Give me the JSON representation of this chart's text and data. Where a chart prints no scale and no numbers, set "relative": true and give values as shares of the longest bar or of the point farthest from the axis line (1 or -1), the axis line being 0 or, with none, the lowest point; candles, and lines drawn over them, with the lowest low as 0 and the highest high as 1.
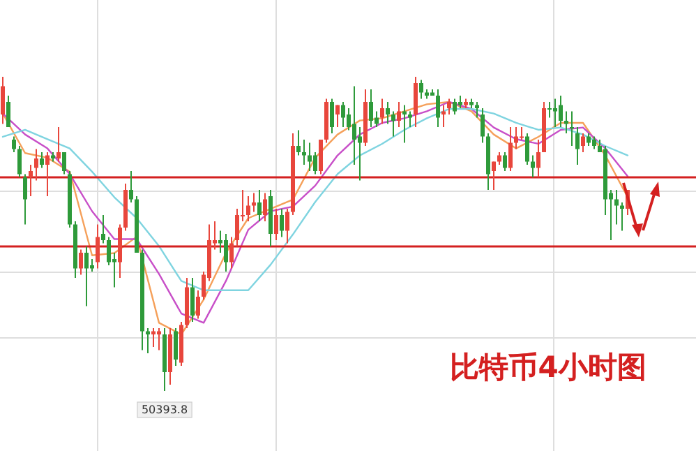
{
  "chart_data": [
    {
      "type": "candlestick",
      "title": "比特币4小时图",
      "relative": true,
      "grid": true,
      "categories": [
        null,
        null,
        null,
        null,
        null,
        null,
        null,
        null,
        null,
        null,
        null,
        null,
        null,
        null,
        null,
        null,
        null,
        null,
        null,
        null,
        null,
        null,
        null,
        null,
        null,
        null,
        null,
        null,
        null,
        null,
        null,
        null,
        null,
        null,
        null,
        null,
        null,
        null,
        null,
        null,
        null,
        null,
        null,
        null,
        null,
        null,
        null,
        null,
        null,
        null,
        null,
        null,
        null,
        null,
        null,
        null,
        null,
        null,
        null,
        null,
        null,
        null,
        null,
        null,
        null,
        null,
        null,
        null,
        null,
        null,
        null,
        null,
        null,
        null,
        null,
        null,
        null,
        null,
        null,
        null,
        null,
        null,
        null,
        null,
        null,
        null,
        null,
        null,
        null,
        null,
        null,
        null,
        null,
        null,
        null,
        null,
        null,
        null,
        null,
        null,
        null,
        null,
        null,
        null,
        null,
        null,
        null,
        null,
        null,
        null,
        null,
        null,
        null
      ],
      "ohlc": [
        [
          0.88,
          1.0,
          0.85,
          0.97
        ],
        [
          0.92,
          0.94,
          0.84,
          0.84
        ],
        [
          0.8,
          0.81,
          0.76,
          0.77
        ],
        [
          0.77,
          0.78,
          0.68,
          0.69
        ],
        [
          0.68,
          0.69,
          0.53,
          0.61
        ],
        [
          0.68,
          0.72,
          0.62,
          0.7
        ],
        [
          0.71,
          0.77,
          0.67,
          0.74
        ],
        [
          0.74,
          0.76,
          0.71,
          0.72
        ],
        [
          0.72,
          0.76,
          0.62,
          0.75
        ],
        [
          0.75,
          0.76,
          0.73,
          0.74
        ],
        [
          0.74,
          0.84,
          0.73,
          0.76
        ],
        [
          0.76,
          0.76,
          0.69,
          0.7
        ],
        [
          0.69,
          0.7,
          0.52,
          0.53
        ],
        [
          0.53,
          0.54,
          0.36,
          0.39
        ],
        [
          0.39,
          0.45,
          0.37,
          0.44
        ],
        [
          0.44,
          0.46,
          0.27,
          0.39
        ],
        [
          0.4,
          0.42,
          0.38,
          0.39
        ],
        [
          0.41,
          0.53,
          0.39,
          0.49
        ],
        [
          0.5,
          0.56,
          0.47,
          0.48
        ],
        [
          0.48,
          0.49,
          0.4,
          0.41
        ],
        [
          0.42,
          0.44,
          0.33,
          0.41
        ],
        [
          0.41,
          0.53,
          0.36,
          0.52
        ],
        [
          0.52,
          0.66,
          0.51,
          0.64
        ],
        [
          0.64,
          0.7,
          0.6,
          0.61
        ],
        [
          0.61,
          0.62,
          0.44,
          0.44
        ],
        [
          0.44,
          0.45,
          0.13,
          0.19
        ],
        [
          0.19,
          0.2,
          0.12,
          0.18
        ],
        [
          0.18,
          0.2,
          0.14,
          0.19
        ],
        [
          0.18,
          0.2,
          0.13,
          0.19
        ],
        [
          0.18,
          0.2,
          0,
          0.06
        ],
        [
          0.06,
          0.2,
          0.02,
          0.18
        ],
        [
          0.19,
          0.2,
          0.08,
          0.1
        ],
        [
          0.09,
          0.22,
          0.08,
          0.21
        ],
        [
          0.21,
          0.36,
          0.2,
          0.33
        ],
        [
          0.33,
          0.36,
          0.22,
          0.24
        ],
        [
          0.24,
          0.32,
          0.23,
          0.3
        ],
        [
          0.3,
          0.38,
          0.29,
          0.37
        ],
        [
          0.36,
          0.53,
          0.35,
          0.48
        ],
        [
          0.47,
          0.54,
          0.45,
          0.48
        ],
        [
          0.48,
          0.51,
          0.44,
          0.47
        ],
        [
          0.48,
          0.5,
          0.38,
          0.41
        ],
        [
          0.41,
          0.49,
          0.39,
          0.47
        ],
        [
          0.48,
          0.58,
          0.46,
          0.56
        ],
        [
          0.56,
          0.64,
          0.54,
          0.56
        ],
        [
          0.56,
          0.62,
          0.54,
          0.59
        ],
        [
          0.59,
          0.63,
          0.57,
          0.6
        ],
        [
          0.6,
          0.64,
          0.54,
          0.56
        ],
        [
          0.56,
          0.63,
          0.54,
          0.61
        ],
        [
          0.62,
          0.64,
          0.46,
          0.5
        ],
        [
          0.5,
          0.58,
          0.48,
          0.56
        ],
        [
          0.56,
          0.58,
          0.49,
          0.51
        ],
        [
          0.51,
          0.58,
          0.47,
          0.57
        ],
        [
          0.57,
          0.82,
          0.56,
          0.78
        ],
        [
          0.78,
          0.83,
          0.75,
          0.76
        ],
        [
          0.76,
          0.8,
          0.72,
          0.75
        ],
        [
          0.75,
          0.79,
          0.7,
          0.73
        ],
        [
          0.75,
          0.76,
          0.69,
          0.7
        ],
        [
          0.7,
          0.8,
          0.69,
          0.8
        ],
        [
          0.8,
          0.93,
          0.79,
          0.92
        ],
        [
          0.92,
          0.93,
          0.82,
          0.84
        ],
        [
          0.88,
          0.91,
          0.84,
          0.91
        ],
        [
          0.91,
          0.92,
          0.84,
          0.87
        ],
        [
          0.88,
          0.9,
          0.83,
          0.84
        ],
        [
          0.85,
          0.97,
          0.72,
          0.8
        ],
        [
          0.81,
          0.84,
          0.67,
          0.79
        ],
        [
          0.79,
          0.96,
          0.78,
          0.92
        ],
        [
          0.92,
          0.96,
          0.84,
          0.86
        ],
        [
          0.87,
          0.89,
          0.84,
          0.85
        ],
        [
          0.87,
          0.93,
          0.85,
          0.9
        ],
        [
          0.9,
          0.92,
          0.85,
          0.88
        ],
        [
          0.88,
          0.89,
          0.81,
          0.86
        ],
        [
          0.86,
          0.92,
          0.84,
          0.89
        ],
        [
          0.89,
          0.91,
          0.79,
          0.88
        ],
        [
          0.88,
          0.89,
          0.84,
          0.87
        ],
        [
          0.88,
          1.0,
          0.84,
          0.98
        ],
        [
          0.98,
          0.99,
          0.93,
          0.95
        ],
        [
          0.95,
          0.96,
          0.93,
          0.94
        ],
        [
          0.95,
          0.96,
          0.94,
          0.94
        ],
        [
          0.94,
          0.96,
          0.84,
          0.87
        ],
        [
          0.88,
          0.91,
          0.84,
          0.89
        ],
        [
          0.9,
          0.93,
          0.88,
          0.92
        ],
        [
          0.92,
          0.93,
          0.88,
          0.89
        ],
        [
          0.92,
          0.94,
          0.9,
          0.91
        ],
        [
          0.91,
          0.93,
          0.9,
          0.92
        ],
        [
          0.92,
          0.93,
          0.9,
          0.91
        ],
        [
          0.91,
          0.92,
          0.87,
          0.9
        ],
        [
          0.88,
          0.9,
          0.79,
          0.81
        ],
        [
          0.81,
          0.82,
          0.64,
          0.69
        ],
        [
          0.7,
          0.73,
          0.64,
          0.73
        ],
        [
          0.73,
          0.76,
          0.72,
          0.75
        ],
        [
          0.75,
          0.76,
          0.7,
          0.71
        ],
        [
          0.71,
          0.84,
          0.7,
          0.79
        ],
        [
          0.79,
          0.84,
          0.77,
          0.81
        ],
        [
          0.81,
          0.84,
          0.8,
          0.81
        ],
        [
          0.81,
          0.82,
          0.72,
          0.73
        ],
        [
          0.73,
          0.75,
          0.68,
          0.71
        ],
        [
          0.71,
          0.8,
          0.68,
          0.76
        ],
        [
          0.76,
          0.92,
          0.76,
          0.9
        ],
        [
          0.9,
          0.92,
          0.87,
          0.9
        ],
        [
          0.9,
          0.93,
          0.84,
          0.89
        ],
        [
          0.91,
          0.94,
          0.84,
          0.86
        ],
        [
          0.86,
          0.89,
          0.82,
          0.85
        ],
        [
          0.84,
          0.89,
          0.78,
          0.84
        ],
        [
          0.82,
          0.84,
          0.72,
          0.77
        ],
        [
          0.78,
          0.82,
          0.76,
          0.81
        ],
        [
          0.81,
          0.82,
          0.78,
          0.79
        ],
        [
          0.8,
          0.81,
          0.77,
          0.78
        ],
        [
          0.78,
          0.8,
          0.76,
          0.76
        ],
        [
          0.77,
          0.78,
          0.56,
          0.61
        ],
        [
          0.63,
          0.64,
          0.48,
          0.61
        ],
        [
          0.61,
          0.64,
          0.53,
          0.59
        ],
        [
          0.59,
          0.6,
          0.51,
          0.58
        ],
        [
          0.58,
          0.64,
          0.56,
          0.64
        ]
      ],
      "colors": [
        "#e8463c",
        "#2e9a3a",
        "#2e9a3a",
        "#2e9a3a",
        "#2e9a3a",
        "#e8463c",
        "#e8463c",
        "#2e9a3a",
        "#e8463c",
        "#2e9a3a",
        "#e8463c",
        "#2e9a3a",
        "#2e9a3a",
        "#2e9a3a",
        "#e8463c",
        "#2e9a3a",
        "#2e9a3a",
        "#e8463c",
        "#2e9a3a",
        "#2e9a3a",
        "#2e9a3a",
        "#e8463c",
        "#e8463c",
        "#2e9a3a",
        "#2e9a3a",
        "#2e9a3a",
        "#2e9a3a",
        "#e8463c",
        "#e8463c",
        "#2e9a3a",
        "#e8463c",
        "#2e9a3a",
        "#e8463c",
        "#e8463c",
        "#2e9a3a",
        "#e8463c",
        "#e8463c",
        "#e8463c",
        "#e8463c",
        "#2e9a3a",
        "#2e9a3a",
        "#e8463c",
        "#e8463c",
        "#e8463c",
        "#e8463c",
        "#e8463c",
        "#2e9a3a",
        "#e8463c",
        "#2e9a3a",
        "#e8463c",
        "#2e9a3a",
        "#e8463c",
        "#e8463c",
        "#2e9a3a",
        "#2e9a3a",
        "#2e9a3a",
        "#2e9a3a",
        "#e8463c",
        "#e8463c",
        "#2e9a3a",
        "#e8463c",
        "#2e9a3a",
        "#2e9a3a",
        "#2e9a3a",
        "#2e9a3a",
        "#e8463c",
        "#2e9a3a",
        "#2e9a3a",
        "#e8463c",
        "#2e9a3a",
        "#2e9a3a",
        "#e8463c",
        "#2e9a3a",
        "#2e9a3a",
        "#e8463c",
        "#2e9a3a",
        "#2e9a3a",
        "#2e9a3a",
        "#2e9a3a",
        "#e8463c",
        "#e8463c",
        "#2e9a3a",
        "#2e9a3a",
        "#e8463c",
        "#2e9a3a",
        "#2e9a3a",
        "#2e9a3a",
        "#2e9a3a",
        "#e8463c",
        "#e8463c",
        "#2e9a3a",
        "#e8463c",
        "#e8463c",
        "#e8463c",
        "#2e9a3a",
        "#2e9a3a",
        "#e8463c",
        "#e8463c",
        "#2e9a3a",
        "#2e9a3a",
        "#2e9a3a",
        "#2e9a3a",
        "#2e9a3a",
        "#2e9a3a",
        "#e8463c",
        "#2e9a3a",
        "#2e9a3a",
        "#2e9a3a",
        "#2e9a3a",
        "#2e9a3a",
        "#2e9a3a",
        "#2e9a3a",
        "#e8463c"
      ],
      "ref_lines": [
        {
          "axis": "y",
          "value": 0.68,
          "color": "#d42020"
        },
        {
          "axis": "y",
          "value": 0.46,
          "color": "#d42020"
        }
      ],
      "annotations": [
        "50393.8"
      ]
    },
    {
      "type": "line",
      "relative": true,
      "categories": [
        null,
        null,
        null,
        null,
        null,
        null,
        null,
        null,
        null,
        null,
        null,
        null,
        null,
        null,
        null,
        null,
        null,
        null,
        null,
        null,
        null,
        null,
        null,
        null,
        null,
        null,
        null,
        null,
        null
      ],
      "series": [
        {
          "color": "#f5a05a",
          "values": [
            0.95,
            0.78,
            0.76,
            0.7,
            0.34,
            0.35,
            0.42,
            0.05,
            0,
            0.15,
            0.35,
            0.5,
            0.54,
            0.58,
            0.76,
            0.86,
            0.92,
            0.93,
            0.96,
            0.99,
            1,
            0.96,
            0.86,
            0.8,
            0.85,
            0.91,
            0.91,
            0.77,
            0.59
          ]
        },
        {
          "color": "#c84fc8",
          "values": [
            0.95,
            0.86,
            0.8,
            0.69,
            0.53,
            0.41,
            0.41,
            0.26,
            0.09,
            0.05,
            0.23,
            0.45,
            0.53,
            0.55,
            0.64,
            0.77,
            0.86,
            0.91,
            0.93,
            0.96,
            1,
            0.97,
            0.89,
            0.84,
            0.82,
            0.88,
            0.89,
            0.8,
            0.68
          ]
        },
        {
          "color": "#7fd4e0",
          "values": [
            0.85,
            0.88,
            0.84,
            0.8,
            0.7,
            0.59,
            0.5,
            0.38,
            0.23,
            0.19,
            0.19,
            0.19,
            0.3,
            0.43,
            0.57,
            0.69,
            0.77,
            0.82,
            0.88,
            0.93,
            0.97,
            0.97,
            0.95,
            0.91,
            0.88,
            0.89,
            0.86,
            0.81,
            0.77
          ]
        }
      ]
    }
  ]
}
